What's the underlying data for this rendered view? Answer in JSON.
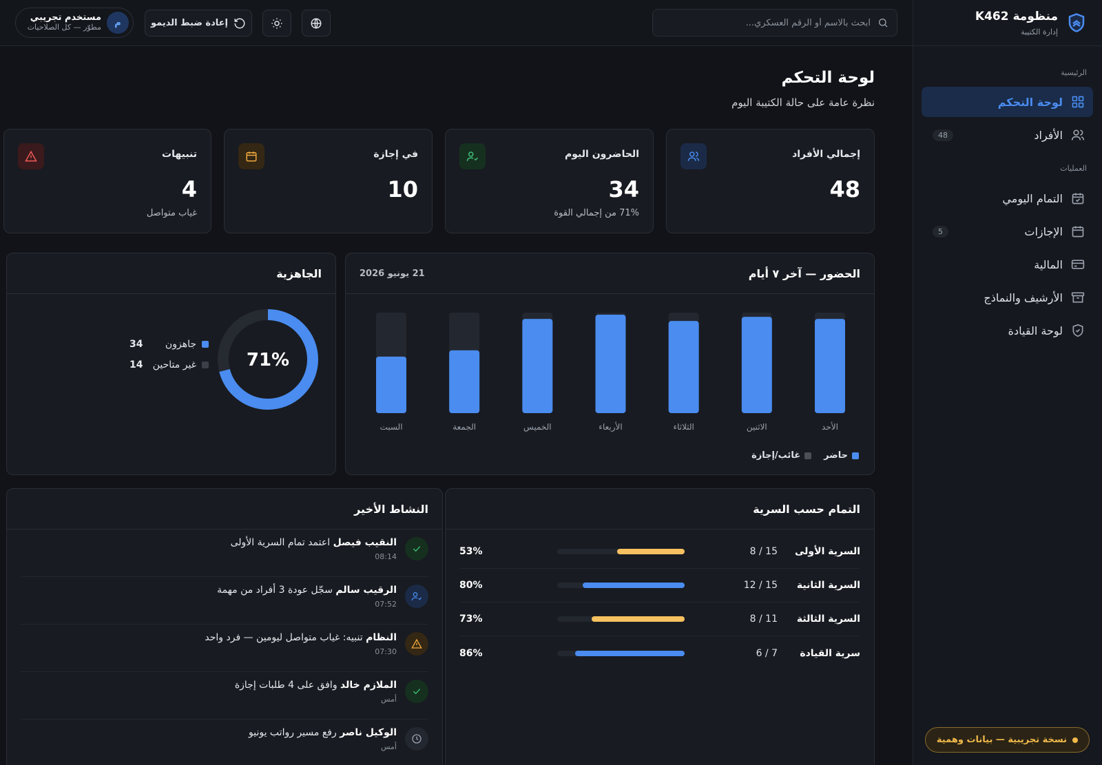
{
  "brand": {
    "title": "منظومة K462",
    "subtitle": "إدارة الكتيبة"
  },
  "nav": {
    "section_main": "الرئيسية",
    "section_ops": "العمليات",
    "items": [
      {
        "label": "لوحة التحكم",
        "icon": "grid-icon",
        "badge": ""
      },
      {
        "label": "الأفراد",
        "icon": "users-icon",
        "badge": "48"
      },
      {
        "label": "التمام اليومي",
        "icon": "calendar-check-icon",
        "badge": ""
      },
      {
        "label": "الإجازات",
        "icon": "calendar-icon",
        "badge": "5"
      },
      {
        "label": "المالية",
        "icon": "credit-card-icon",
        "badge": ""
      },
      {
        "label": "الأرشيف والنماذج",
        "icon": "archive-icon",
        "badge": ""
      },
      {
        "label": "لوحة القيادة",
        "icon": "shield-icon",
        "badge": ""
      }
    ]
  },
  "demo_badge": "نسخة تجريبية — بيانات وهمية",
  "topbar": {
    "search_placeholder": "ابحث بالاسم أو الرقم العسكري...",
    "reset_label": "إعادة ضبط الديمو",
    "user_initial": "م",
    "user_name": "مستخدم تجريبي",
    "user_role": "مطوّر — كل الصلاحيات"
  },
  "page": {
    "title": "لوحة التحكم",
    "subtitle": "نظرة عامة على حالة الكتيبة اليوم"
  },
  "stats": [
    {
      "label": "إجمالي الأفراد",
      "value": "48",
      "note": "",
      "icon": "users-icon",
      "color": "#4a8cf0",
      "bg": "#1b2b47"
    },
    {
      "label": "الحاضرون اليوم",
      "value": "34",
      "note": "71% من إجمالي القوة",
      "icon": "user-check-icon",
      "color": "#3ec27a",
      "bg": "#16301f"
    },
    {
      "label": "في إجازة",
      "value": "10",
      "note": "",
      "icon": "calendar-icon",
      "color": "#f0a83a",
      "bg": "#342714"
    },
    {
      "label": "تنبيهات",
      "value": "4",
      "note": "غياب متواصل",
      "icon": "alert-triangle-icon",
      "color": "#f05a5a",
      "bg": "#3a1a1c"
    }
  ],
  "attendance": {
    "title": "الحضور — آخر ٧ أيام",
    "date": "21 يونيو 2026",
    "legend_present": "حاضر",
    "legend_absent": "غائب/إجازة",
    "color_present": "#4a8cf0",
    "color_absent": "#23272f"
  },
  "chart_data": {
    "type": "bar",
    "categories": [
      "الأحد",
      "الاثنين",
      "الثلاثاء",
      "الأربعاء",
      "الخميس",
      "الجمعة",
      "السبت"
    ],
    "series": [
      {
        "name": "حاضر",
        "values": [
          45,
          46,
          44,
          47,
          45,
          30,
          27
        ]
      },
      {
        "name": "غائب/إجازة",
        "values": [
          3,
          2,
          4,
          1,
          3,
          18,
          21
        ]
      }
    ],
    "ylim": [
      0,
      48
    ],
    "stacked": true,
    "grid": false,
    "legend": "bottom-right"
  },
  "readiness": {
    "title": "الجاهزية",
    "percent_label": "71%",
    "percent": 0.71,
    "ready_label": "جاهزون",
    "ready_value": "34",
    "unavailable_label": "غير متاحين",
    "unavailable_value": "14",
    "color_ready": "#4a8cf0",
    "color_track": "#262a31"
  },
  "platoons": {
    "title": "التمام حسب السرية",
    "rows": [
      {
        "name": "السرية الأولى",
        "count": "8 / 15",
        "percent": "53%",
        "fraction": 0.53,
        "color": "#f6c160"
      },
      {
        "name": "السرية الثانية",
        "count": "12 / 15",
        "percent": "80%",
        "fraction": 0.8,
        "color": "#4a8cf0"
      },
      {
        "name": "السرية الثالثة",
        "count": "8 / 11",
        "percent": "73%",
        "fraction": 0.73,
        "color": "#f6c160"
      },
      {
        "name": "سرية القيادة",
        "count": "6 / 7",
        "percent": "86%",
        "fraction": 0.86,
        "color": "#4a8cf0"
      }
    ]
  },
  "activity": {
    "title": "النشاط الأخير",
    "items": [
      {
        "actor": "النقيب فيصل",
        "text": "اعتمد تمام السرية الأولى",
        "time": "08:14",
        "icon": "check-icon",
        "color": "#3ec27a",
        "bg": "#16301f"
      },
      {
        "actor": "الرقيب سالم",
        "text": "سجّل عودة 3 أفراد من مهمة",
        "time": "07:52",
        "icon": "user-check-icon",
        "color": "#4a8cf0",
        "bg": "#1b2b47"
      },
      {
        "actor": "النظام",
        "text": "تنبيه: غياب متواصل ليومين — فرد واحد",
        "time": "07:30",
        "icon": "alert-triangle-icon",
        "color": "#f0a83a",
        "bg": "#342714"
      },
      {
        "actor": "الملازم خالد",
        "text": "وافق على 4 طلبات إجازة",
        "time": "أمس",
        "icon": "check-icon",
        "color": "#3ec27a",
        "bg": "#16301f"
      },
      {
        "actor": "الوكيل ناصر",
        "text": "رفع مسير رواتب يونيو",
        "time": "أمس",
        "icon": "clock-icon",
        "color": "#9aa1ad",
        "bg": "#23272f"
      }
    ]
  }
}
